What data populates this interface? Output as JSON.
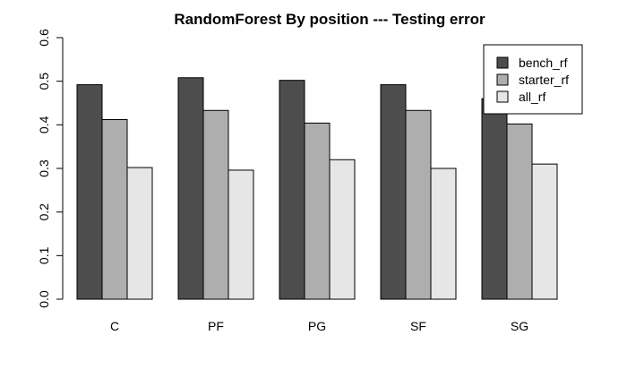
{
  "chart_data": {
    "type": "bar",
    "title": "RandomForest By position --- Testing error",
    "xlabel": "",
    "ylabel": "",
    "categories": [
      "C",
      "PF",
      "PG",
      "SF",
      "SG"
    ],
    "series": [
      {
        "name": "bench_rf",
        "color": "#4d4d4d",
        "values": [
          0.492,
          0.508,
          0.502,
          0.492,
          0.46
        ]
      },
      {
        "name": "starter_rf",
        "color": "#aeaeae",
        "values": [
          0.412,
          0.433,
          0.404,
          0.433,
          0.402
        ]
      },
      {
        "name": "all_rf",
        "color": "#e6e6e6",
        "values": [
          0.302,
          0.296,
          0.32,
          0.3,
          0.31
        ]
      }
    ],
    "ylim": [
      0,
      0.6
    ],
    "yticks": [
      "0.0",
      "0.1",
      "0.2",
      "0.3",
      "0.4",
      "0.5",
      "0.6"
    ],
    "grid": false,
    "legend_position": "top-right"
  }
}
